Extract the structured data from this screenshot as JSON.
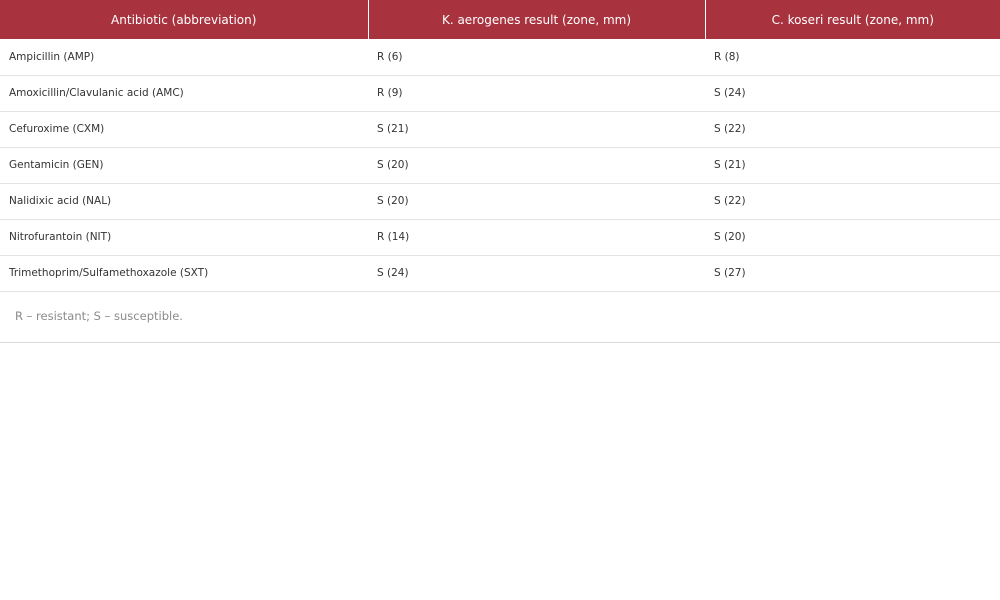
{
  "table": {
    "headers": [
      "Antibiotic (abbreviation)",
      "K. aerogenes result (zone, mm)",
      "C. koseri result (zone, mm)"
    ],
    "rows": [
      [
        "Ampicillin (AMP)",
        "R (6)",
        "R (8)"
      ],
      [
        "Amoxicillin/Clavulanic acid (AMC)",
        "R (9)",
        "S (24)"
      ],
      [
        "Cefuroxime (CXM)",
        "S (21)",
        "S (22)"
      ],
      [
        "Gentamicin (GEN)",
        "S (20)",
        "S (21)"
      ],
      [
        "Nalidixic acid (NAL)",
        "S (20)",
        "S (22)"
      ],
      [
        "Nitrofurantoin (NIT)",
        "R (14)",
        "S (20)"
      ],
      [
        "Trimethoprim/Sulfamethoxazole (SXT)",
        "S (24)",
        "S (27)"
      ]
    ],
    "footnote": "R – resistant; S – susceptible."
  },
  "colors": {
    "header_bg": "#a8323e",
    "header_text": "#ffffff"
  }
}
